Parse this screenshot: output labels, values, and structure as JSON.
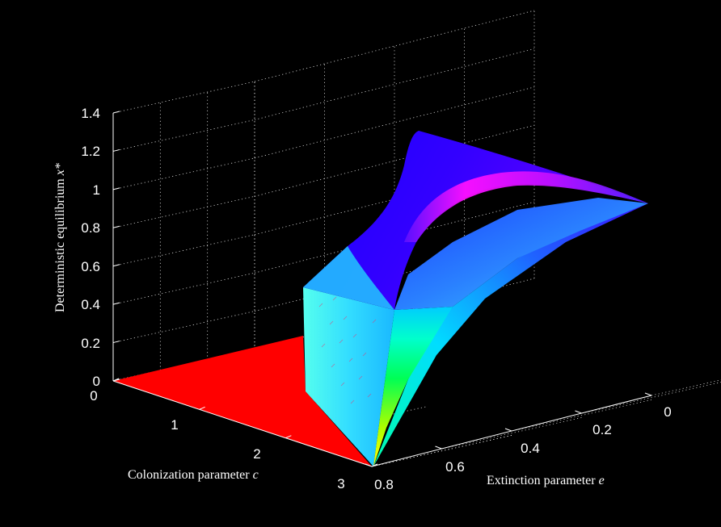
{
  "chart_data": {
    "type": "surface3d",
    "title": "",
    "xlabel": "Colonization parameter",
    "xlabel_symbol": "c",
    "ylabel": "Extinction parameter",
    "ylabel_symbol": "e",
    "zlabel": "Deterministic equilibrium",
    "zlabel_symbol": "x*",
    "x_ticks": [
      "0",
      "1",
      "2",
      "3"
    ],
    "y_ticks": [
      "0",
      "0.2",
      "0.4",
      "0.6",
      "0.8"
    ],
    "z_ticks": [
      "0",
      "0.2",
      "0.4",
      "0.6",
      "0.8",
      "1",
      "1.2",
      "1.4"
    ],
    "xlim": [
      0,
      3
    ],
    "ylim": [
      0,
      0.8
    ],
    "zlim": [
      0,
      1.4
    ],
    "colormap": "hsv",
    "grid": true,
    "background": "#000000",
    "colors": {
      "floor": "#ff0000",
      "cliff": "#33ddff",
      "peak": "#2200ff",
      "ridge": "#ff00ff",
      "front_low": "#ffff00",
      "front_mid": "#00ff66"
    }
  }
}
